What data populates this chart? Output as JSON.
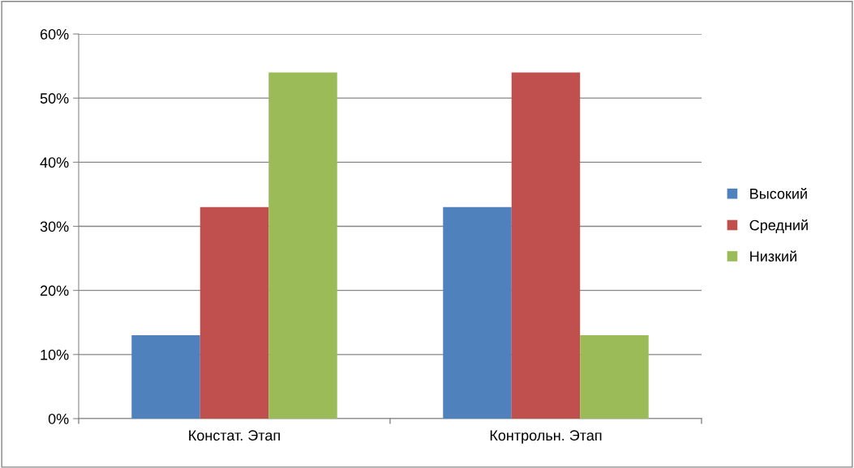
{
  "chart_data": {
    "type": "bar",
    "categories": [
      "Констат. Этап",
      "Контрольн. Этап"
    ],
    "series": [
      {
        "name": "Высокий",
        "color": "#4f81bd",
        "values": [
          13,
          33
        ]
      },
      {
        "name": "Средний",
        "color": "#c0504d",
        "values": [
          33,
          54
        ]
      },
      {
        "name": "Низкий",
        "color": "#9bbb59",
        "values": [
          54,
          13
        ]
      }
    ],
    "ylim": [
      0,
      60
    ],
    "yticks": [
      {
        "value": 0,
        "label": "0%"
      },
      {
        "value": 10,
        "label": "10%"
      },
      {
        "value": 20,
        "label": "20%"
      },
      {
        "value": 30,
        "label": "30%"
      },
      {
        "value": 40,
        "label": "40%"
      },
      {
        "value": 50,
        "label": "50%"
      },
      {
        "value": 60,
        "label": "60%"
      }
    ],
    "grid": "y",
    "legend": "right"
  }
}
